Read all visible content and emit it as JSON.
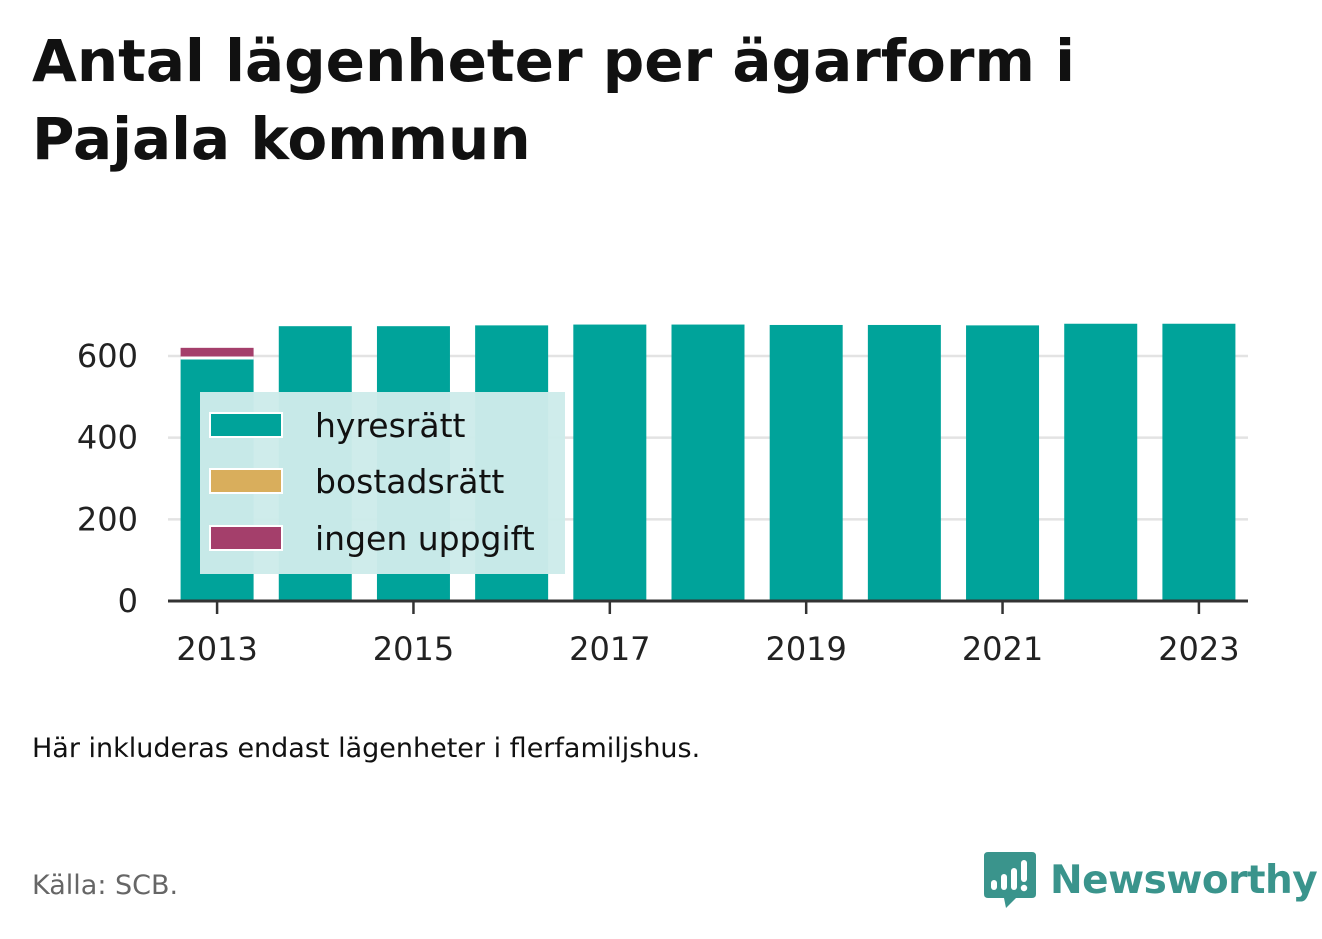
{
  "title": "Antal lägenheter per ägarform i Pajala kommun",
  "note": "Här inkluderas endast lägenheter i flerfamiljshus.",
  "source": "Källa: SCB.",
  "brand": {
    "name": "Newsworthy",
    "color": "#3a948c",
    "icon": "newsworthy-logo-icon"
  },
  "colors": {
    "hyresratt": "#00a39a",
    "bostadsratt": "#d9ae5c",
    "ingen_uppgift": "#a43f6b",
    "grid": "#e3e3e3",
    "axis": "#333333",
    "legend_bg": "#cdebea"
  },
  "chart_data": {
    "type": "bar",
    "stacked": true,
    "categories": [
      "2013",
      "2014",
      "2015",
      "2016",
      "2017",
      "2018",
      "2019",
      "2020",
      "2021",
      "2022",
      "2023"
    ],
    "x_tick_labels": [
      "2013",
      "2015",
      "2017",
      "2019",
      "2021",
      "2023"
    ],
    "y_ticks": [
      0,
      200,
      400,
      600
    ],
    "ylim": [
      0,
      700
    ],
    "grid": true,
    "legend_placement": "top-left",
    "series": [
      {
        "key": "hyresratt",
        "name": "hyresrätt",
        "values": [
          595,
          673,
          673,
          675,
          677,
          677,
          676,
          676,
          675,
          679,
          679
        ]
      },
      {
        "key": "bostadsratt",
        "name": "bostadsrätt",
        "values": [
          0,
          0,
          0,
          0,
          0,
          0,
          0,
          0,
          0,
          0,
          0
        ]
      },
      {
        "key": "ingen_uppgift",
        "name": "ingen uppgift",
        "values": [
          25,
          0,
          0,
          0,
          0,
          0,
          0,
          0,
          0,
          0,
          0
        ]
      }
    ]
  }
}
